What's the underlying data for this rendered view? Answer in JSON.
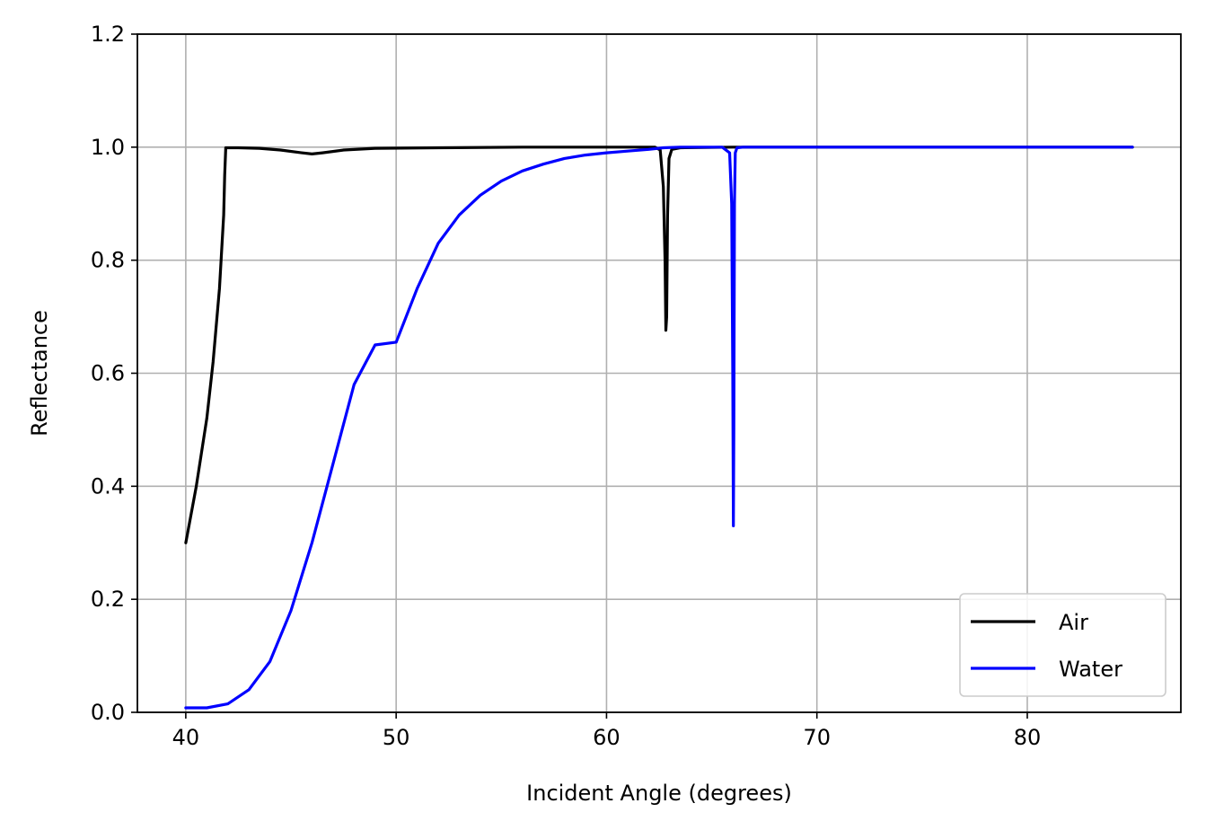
{
  "chart_data": {
    "type": "line",
    "xlabel": "Incident Angle (degrees)",
    "ylabel": "Reflectance",
    "xlim": [
      37.7,
      87.3
    ],
    "ylim": [
      0.0,
      1.2
    ],
    "xticks": [
      40,
      50,
      60,
      70,
      80
    ],
    "yticks": [
      0.0,
      0.2,
      0.4,
      0.6,
      0.8,
      1.0,
      1.2
    ],
    "xtick_labels": [
      "40",
      "50",
      "60",
      "70",
      "80"
    ],
    "ytick_labels": [
      "0.0",
      "0.2",
      "0.4",
      "0.6",
      "0.8",
      "1.0",
      "1.2"
    ],
    "grid": true,
    "legend_position": "bottom-right",
    "series": [
      {
        "name": "Air",
        "color": "#000000",
        "x": [
          40.0,
          40.5,
          41.0,
          41.3,
          41.6,
          41.8,
          41.85,
          41.9,
          42.5,
          43.5,
          44.5,
          45.5,
          46.0,
          46.5,
          47.5,
          49.0,
          52.0,
          56.0,
          60.0,
          62.3,
          62.55,
          62.7,
          62.78,
          62.82,
          62.86,
          62.9,
          62.97,
          63.1,
          63.5,
          66.0,
          70.0,
          75.0,
          80.0,
          85.0
        ],
        "y": [
          0.3,
          0.4,
          0.52,
          0.62,
          0.75,
          0.88,
          0.95,
          0.999,
          0.999,
          0.998,
          0.995,
          0.99,
          0.988,
          0.99,
          0.995,
          0.998,
          0.999,
          1.0,
          1.0,
          1.0,
          0.995,
          0.93,
          0.8,
          0.676,
          0.7,
          0.88,
          0.98,
          0.996,
          0.999,
          1.0,
          1.0,
          1.0,
          1.0,
          1.0
        ]
      },
      {
        "name": "Water",
        "color": "#0000ff",
        "x": [
          40.0,
          41.0,
          42.0,
          43.0,
          44.0,
          45.0,
          46.0,
          47.0,
          48.0,
          49.0,
          50.0,
          51.0,
          52.0,
          53.0,
          54.0,
          55.0,
          56.0,
          57.0,
          58.0,
          59.0,
          60.0,
          61.0,
          62.0,
          62.7,
          63.5,
          65.5,
          65.85,
          65.95,
          66.0,
          66.03,
          66.05,
          66.08,
          66.12,
          66.2,
          66.5,
          70.0,
          75.0,
          80.0,
          85.0
        ],
        "y": [
          0.008,
          0.008,
          0.015,
          0.04,
          0.09,
          0.18,
          0.3,
          0.44,
          0.58,
          0.65,
          0.655,
          0.75,
          0.83,
          0.88,
          0.915,
          0.94,
          0.958,
          0.97,
          0.98,
          0.986,
          0.99,
          0.993,
          0.996,
          0.999,
          1.0,
          1.0,
          0.99,
          0.9,
          0.6,
          0.33,
          0.5,
          0.9,
          0.99,
          0.999,
          1.0,
          1.0,
          1.0,
          1.0,
          1.0
        ]
      }
    ]
  }
}
